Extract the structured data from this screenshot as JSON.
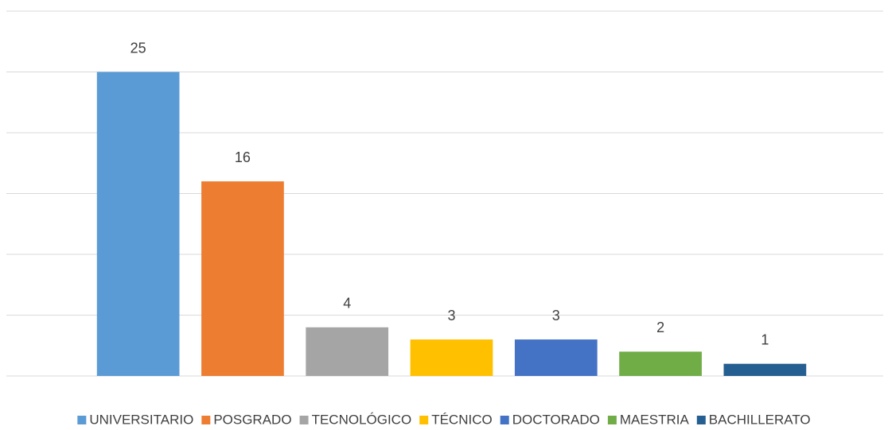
{
  "chart_data": {
    "type": "bar",
    "categories": [
      "UNIVERSITARIO",
      "POSGRADO",
      "TECNOLÓGICO",
      "TÉCNICO",
      "DOCTORADO",
      "MAESTRIA",
      "BACHILLERATO"
    ],
    "values": [
      25,
      16,
      4,
      3,
      3,
      2,
      1
    ],
    "colors": [
      "#5b9bd5",
      "#ed7d31",
      "#a5a5a5",
      "#ffc000",
      "#4472c4",
      "#70ad47",
      "#255e91"
    ],
    "ylim": [
      0,
      30
    ],
    "yticks": [
      0,
      5,
      10,
      15,
      20,
      25,
      30
    ],
    "grid": true,
    "legend": "bottom"
  }
}
